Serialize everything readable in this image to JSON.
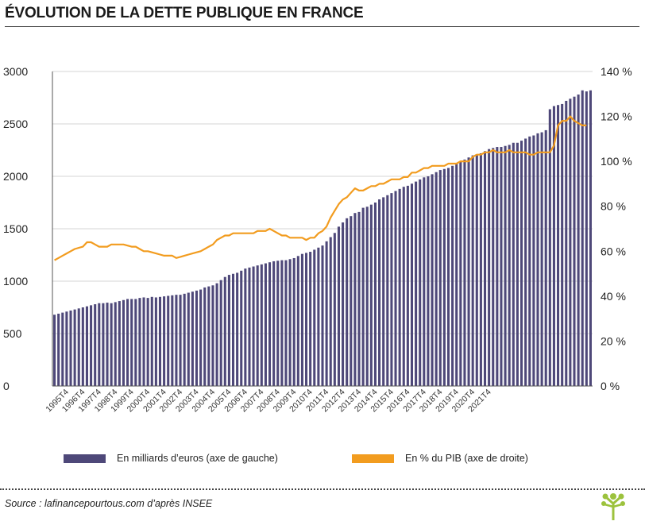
{
  "title": "ÉVOLUTION DE LA DETTE PUBLIQUE EN FRANCE",
  "source": "Source : lafinancepourtous.com d’après INSEE",
  "legend": {
    "bars_label": "En milliards d’euros (axe de gauche)",
    "line_label": "En % du PIB (axe de droite)"
  },
  "colors": {
    "bars": "#4e4879",
    "line": "#f29c1f",
    "logo": "#9cc23d"
  },
  "logo_icon": "tree-icon",
  "chart_data": {
    "type": "bar",
    "left_axis": {
      "ticks": [
        "0",
        "500",
        "1000",
        "1500",
        "2000",
        "2500",
        "3000"
      ],
      "ylim": [
        0,
        3000
      ]
    },
    "right_axis": {
      "ticks": [
        "0 %",
        "20 %",
        "40 %",
        "60 %",
        "80 %",
        "100 %",
        "120 %",
        "140 %"
      ],
      "ylim": [
        0,
        140
      ]
    },
    "x_tick_labels": [
      "1995T4",
      "1996T4",
      "1997T4",
      "1998T4",
      "1999T4",
      "2000T4",
      "2001T4",
      "2002T4",
      "2003T4",
      "2004T4",
      "2005T4",
      "2006T4",
      "2007T4",
      "2008T4",
      "2009T4",
      "2010T4",
      "2011T4",
      "2012T4",
      "2013T4",
      "2014T4",
      "2015T4",
      "2016T4",
      "2017T4",
      "2018T4",
      "2019T4",
      "2020T4",
      "2021T4"
    ],
    "x_start": "1995T1",
    "x_end": "2021T4",
    "grid": true,
    "legend_position": "bottom",
    "series": [
      {
        "name": "En milliards d’euros (axe de gauche)",
        "type": "bar",
        "axis": "left",
        "values": [
          680,
          690,
          700,
          710,
          720,
          730,
          740,
          750,
          760,
          770,
          780,
          790,
          790,
          795,
          790,
          800,
          810,
          820,
          830,
          830,
          830,
          840,
          845,
          840,
          850,
          845,
          850,
          855,
          860,
          865,
          870,
          870,
          880,
          890,
          900,
          910,
          920,
          940,
          950,
          960,
          980,
          1010,
          1040,
          1060,
          1070,
          1080,
          1100,
          1120,
          1130,
          1140,
          1150,
          1160,
          1170,
          1180,
          1190,
          1195,
          1200,
          1200,
          1210,
          1220,
          1240,
          1260,
          1270,
          1280,
          1300,
          1320,
          1340,
          1380,
          1420,
          1460,
          1520,
          1560,
          1600,
          1620,
          1650,
          1660,
          1700,
          1710,
          1730,
          1750,
          1780,
          1800,
          1820,
          1840,
          1860,
          1880,
          1900,
          1910,
          1930,
          1950,
          1970,
          1990,
          2000,
          2020,
          2040,
          2060,
          2070,
          2080,
          2100,
          2120,
          2140,
          2160,
          2180,
          2200,
          2210,
          2220,
          2240,
          2260,
          2270,
          2280,
          2280,
          2290,
          2300,
          2320,
          2320,
          2340,
          2360,
          2380,
          2390,
          2410,
          2420,
          2440,
          2640,
          2670,
          2680,
          2690,
          2720,
          2740,
          2760,
          2780,
          2820,
          2810,
          2820
        ]
      },
      {
        "name": "En % du PIB (axe de droite)",
        "type": "line",
        "axis": "right",
        "values": [
          56,
          57,
          58,
          59,
          60,
          61,
          61.5,
          62,
          64,
          64,
          63,
          62,
          62,
          62,
          63,
          63,
          63,
          63,
          62.5,
          62,
          62,
          61,
          60,
          60,
          59.5,
          59,
          58.5,
          58,
          58,
          58,
          57,
          57.5,
          58,
          58.5,
          59,
          59.5,
          60,
          61,
          62,
          63,
          65,
          66,
          67,
          67,
          68,
          68,
          68,
          68,
          68,
          68,
          69,
          69,
          69,
          70,
          69,
          68,
          67,
          67,
          66,
          66,
          66,
          66,
          65,
          66,
          66,
          68,
          69,
          71,
          75,
          78,
          81,
          83,
          84,
          86,
          88,
          87,
          87,
          88,
          89,
          89,
          90,
          90,
          91,
          92,
          92,
          92,
          93,
          93,
          95,
          95,
          96,
          97,
          97,
          98,
          98,
          98,
          98,
          99,
          99,
          99,
          100,
          100,
          100,
          102,
          103,
          103,
          104,
          104,
          105,
          104,
          104,
          104,
          105,
          104,
          104,
          104,
          104,
          103,
          103,
          104,
          104,
          104,
          104,
          107,
          116,
          118,
          118,
          120,
          118,
          117,
          116,
          116
        ]
      }
    ]
  }
}
